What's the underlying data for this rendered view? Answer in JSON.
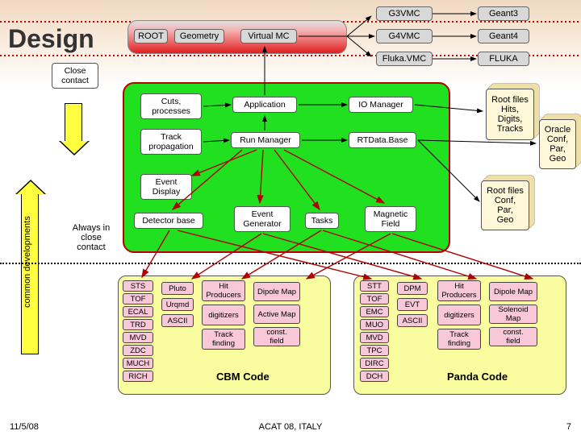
{
  "title": "Design",
  "topRow": {
    "g3vmc": "G3VMC",
    "geant3": "Geant3",
    "root": "ROOT",
    "geometry": "Geometry",
    "virtualmc": "Virtual MC",
    "g4vmc": "G4VMC",
    "geant4": "Geant4",
    "flukavmc": "Fluka.VMC",
    "fluka": "FLUKA"
  },
  "closeContact": "Close\ncontact",
  "cuts": "Cuts,\nprocesses",
  "trackProp": "Track\npropagation",
  "application": "Application",
  "runManager": "Run Manager",
  "ioManager": "IO Manager",
  "rtdata": "RTData.Base",
  "eventDisplay": "Event\nDisplay",
  "detectorBase": "Detector base",
  "eventGen": "Event\nGenerator",
  "tasks": "Tasks",
  "magField": "Magnetic\nField",
  "rootFiles1": "Root files\nHits,\nDigits,\nTracks",
  "oracle": "Oracle\nConf,\nPar,\nGeo",
  "rootFiles2": "Root files\nConf,\nPar,\nGeo",
  "alwaysClose": "Always in\nclose\ncontact",
  "vertCommon": "common developments",
  "cbmLeft": [
    "STS",
    "TOF",
    "ECAL",
    "TRD",
    "MVD",
    "ZDC",
    "MUCH",
    "RICH"
  ],
  "cbmGen": [
    "Pluto",
    "Urqmd",
    "ASCII"
  ],
  "cbmMid": [
    "Hit\nProducers",
    "digitizers",
    "Track\nfinding"
  ],
  "cbmRight": [
    "Dipole Map",
    "Active Map",
    "const.\nfield"
  ],
  "pandaLeft": [
    "STT",
    "TOF",
    "EMC",
    "MUO",
    "MVD",
    "TPC",
    "DIRC",
    "DCH"
  ],
  "pandaGen": [
    "DPM",
    "EVT",
    "ASCII"
  ],
  "pandaMid": [
    "Hit\nProducers",
    "digitizers",
    "Track\nfinding"
  ],
  "pandaRight": [
    "Dipole Map",
    "Solenoid\nMap",
    "const.\nfield"
  ],
  "cbmCode": "CBM Code",
  "pandaCode": "Panda Code",
  "footerL": "11/5/08",
  "footerC": "ACAT 08, ITALY",
  "footerR": "7",
  "colors": {
    "grey": "#d8d8d8",
    "peach": "#fcd4a8",
    "blue": "#c8e0f8",
    "pink": "#f8c8d8",
    "cream": "#fef8d8"
  }
}
